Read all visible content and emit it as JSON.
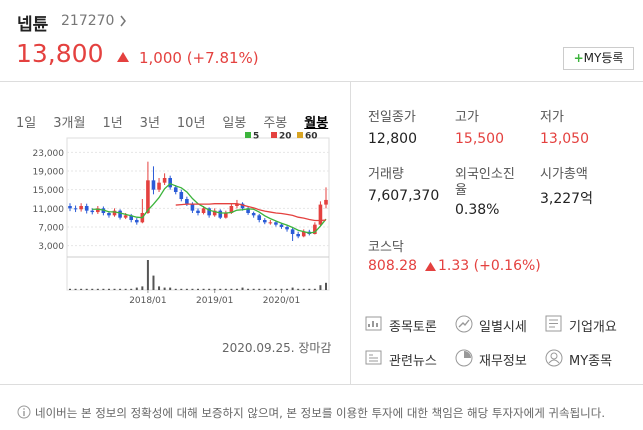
{
  "header": {
    "name": "넵튠",
    "code": "217270",
    "price": "13,800",
    "change": "1,000 (+7.81%)",
    "my_button": "MY등록"
  },
  "tabs": [
    "1일",
    "3개월",
    "1년",
    "3년",
    "10년",
    "일봉",
    "주봉",
    "월봉"
  ],
  "chart_data": {
    "type": "candlestick",
    "categories": [
      null,
      null,
      null,
      null,
      null,
      null,
      null,
      null,
      null,
      null,
      null,
      null,
      null,
      null,
      "2018/01",
      null,
      null,
      null,
      null,
      null,
      null,
      null,
      null,
      null,
      null,
      null,
      "2019/01",
      null,
      null,
      null,
      null,
      null,
      null,
      null,
      null,
      null,
      null,
      null,
      "2020/01",
      null,
      null,
      null,
      null,
      null,
      null,
      null,
      null
    ],
    "open": [
      11500,
      11000,
      10800,
      11500,
      10500,
      10200,
      11000,
      10000,
      9500,
      10500,
      9000,
      9500,
      8500,
      8000,
      10000,
      17000,
      15000,
      16500,
      17500,
      15500,
      14500,
      13000,
      12000,
      10500,
      10000,
      11000,
      9500,
      10500,
      9000,
      10000,
      11500,
      12000,
      11000,
      10000,
      9500,
      8500,
      8000,
      8000,
      7500,
      7000,
      6500,
      5500,
      5000,
      6000,
      5500,
      7500,
      11800
    ],
    "high": [
      12100,
      11600,
      12100,
      12000,
      11000,
      11500,
      11400,
      10400,
      11000,
      10800,
      10000,
      9800,
      8900,
      13000,
      21000,
      20000,
      17500,
      18500,
      18000,
      16000,
      15000,
      13500,
      12300,
      11000,
      11500,
      11200,
      11000,
      10800,
      10500,
      12000,
      12800,
      12300,
      11300,
      10300,
      9800,
      8900,
      8500,
      8300,
      7900,
      7300,
      6800,
      6000,
      6500,
      6400,
      8000,
      12500,
      15500
    ],
    "low": [
      10400,
      10200,
      10300,
      9900,
      9700,
      9800,
      9500,
      9000,
      9200,
      8600,
      8700,
      8000,
      7500,
      7800,
      9800,
      14000,
      14500,
      16000,
      15000,
      14000,
      12500,
      11500,
      10000,
      9500,
      9700,
      9000,
      9200,
      8700,
      8800,
      9800,
      11000,
      10500,
      9600,
      9000,
      8000,
      7600,
      7500,
      7100,
      6600,
      6000,
      4000,
      4600,
      4800,
      5200,
      5400,
      7300,
      11000
    ],
    "close": [
      11000,
      10800,
      11500,
      10500,
      10200,
      11000,
      10000,
      9500,
      10500,
      9000,
      9500,
      8500,
      8000,
      10000,
      17000,
      15000,
      16500,
      17500,
      15500,
      14500,
      13000,
      12000,
      10500,
      10000,
      11000,
      9500,
      10500,
      9000,
      10000,
      11500,
      12000,
      11000,
      10000,
      9500,
      8500,
      8000,
      8000,
      7500,
      7000,
      6500,
      5500,
      5000,
      6000,
      5500,
      7500,
      11800,
      12800
    ],
    "series": [
      {
        "name": "5",
        "color": "#3cb43c",
        "values": [
          null,
          null,
          null,
          null,
          10800,
          10800,
          10640,
          10240,
          10240,
          10000,
          9700,
          9400,
          9100,
          9000,
          10600,
          11900,
          13300,
          15200,
          16300,
          15800,
          15400,
          14500,
          13100,
          12000,
          11300,
          10600,
          10300,
          10000,
          10000,
          10100,
          10600,
          10700,
          10900,
          10800,
          10200,
          9400,
          8800,
          8300,
          7800,
          7400,
          6900,
          6300,
          6000,
          5700,
          5900,
          7200,
          8700
        ]
      },
      {
        "name": "20",
        "color": "#e4413f",
        "values": [
          null,
          null,
          null,
          null,
          null,
          null,
          null,
          null,
          null,
          null,
          null,
          null,
          null,
          null,
          null,
          null,
          null,
          null,
          null,
          11700,
          11800,
          11900,
          11900,
          11900,
          11900,
          11900,
          12000,
          12000,
          12000,
          12000,
          12000,
          11700,
          11400,
          11100,
          10700,
          10400,
          10200,
          10000,
          9900,
          9700,
          9500,
          9100,
          8900,
          8600,
          8400,
          8400,
          8500
        ]
      },
      {
        "name": "60",
        "color": "#d8a423",
        "values": [
          null,
          null,
          null,
          null,
          null,
          null,
          null,
          null,
          null,
          null,
          null,
          null,
          null,
          null,
          null,
          null,
          null,
          null,
          null,
          null,
          null,
          null,
          null,
          null,
          null,
          null,
          null,
          null,
          null,
          null,
          null,
          null,
          null,
          null,
          null,
          null,
          null,
          null,
          null,
          null,
          null,
          null,
          null,
          null,
          null,
          null,
          null
        ]
      }
    ],
    "volume": [
      1,
      1,
      1,
      1,
      1,
      1,
      1,
      1,
      1,
      1,
      1,
      1,
      2,
      3,
      25,
      12,
      3,
      2,
      2,
      1,
      1,
      1,
      1,
      1,
      1,
      1,
      1,
      1,
      1,
      1,
      1,
      2,
      1,
      1,
      1,
      1,
      1,
      1,
      1,
      1,
      2,
      1,
      1,
      1,
      1,
      4,
      6
    ],
    "up_color": "#e4413f",
    "down_color": "#2a5bd7",
    "ylim": [
      1000,
      25000
    ],
    "yticks": [
      {
        "value": 3000,
        "label": "3,000"
      },
      {
        "value": 7000,
        "label": "7,000"
      },
      {
        "value": 11000,
        "label": "11,000"
      },
      {
        "value": 15000,
        "label": "15,000"
      },
      {
        "value": 19000,
        "label": "19,000"
      },
      {
        "value": 23000,
        "label": "23,000"
      }
    ],
    "grid": true
  },
  "timestamp": "2020.09.25. 장마감",
  "stats": [
    {
      "label": "전일종가",
      "value": "12,800",
      "color": "#222222"
    },
    {
      "label": "고가",
      "value": "15,500",
      "color": "#e4413f"
    },
    {
      "label": "저가",
      "value": "13,050",
      "color": "#e4413f"
    },
    {
      "label": "거래량",
      "value": "7,607,370",
      "color": "#222222"
    },
    {
      "label": "외국인소진율",
      "value": "0.38%",
      "color": "#222222"
    },
    {
      "label": "시가총액",
      "value": "3,227억",
      "color": "#222222"
    }
  ],
  "index": {
    "label": "코스닥",
    "value": "808.28",
    "change": "1.33 (+0.16%)"
  },
  "buttons": [
    "종목토론",
    "일별시세",
    "기업개요",
    "관련뉴스",
    "재무정보",
    "MY종목"
  ],
  "notice": "네이버는 본 정보의 정확성에 대해 보증하지 않으며, 본 정보를 이용한 투자에 대한 책임은 해당 투자자에게 귀속됩니다."
}
